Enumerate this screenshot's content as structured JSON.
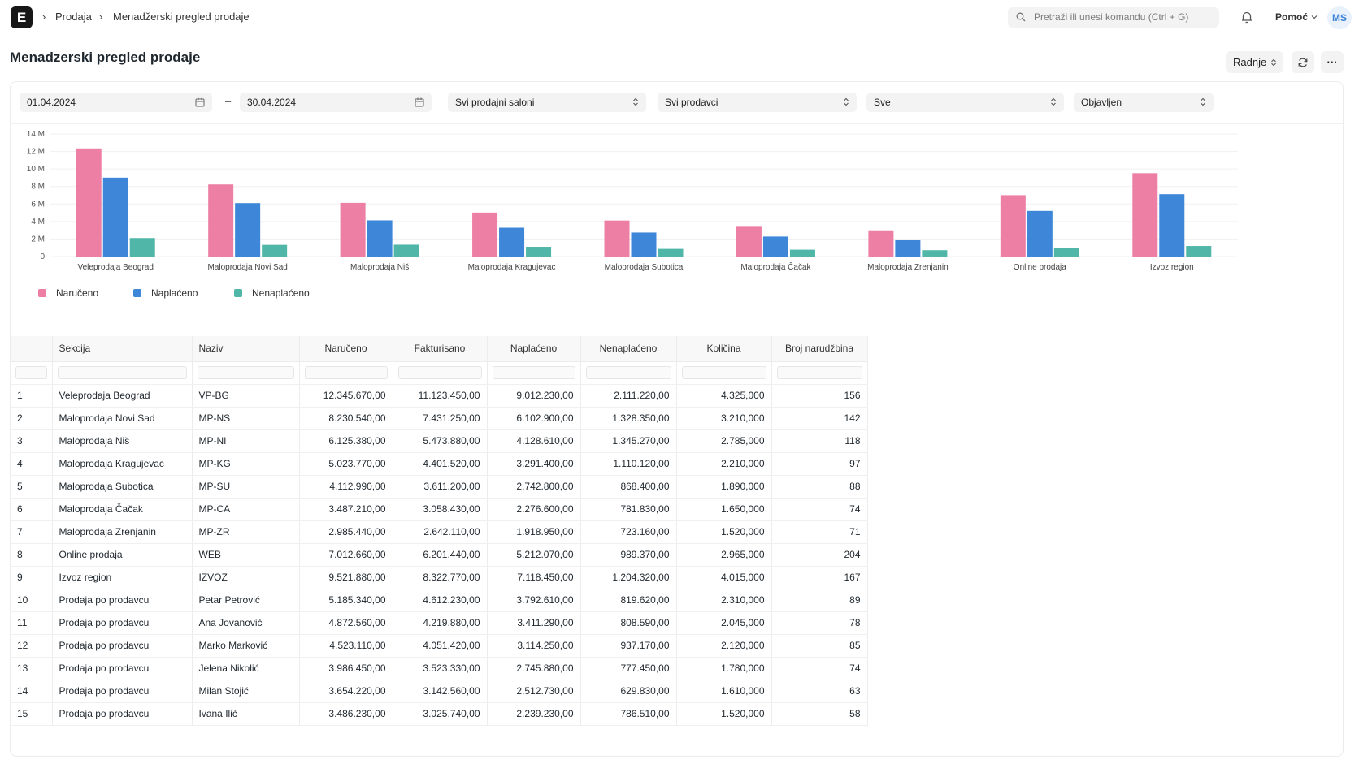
{
  "topbar": {
    "logo": "E",
    "breadcrumbs": [
      "Prodaja",
      "Menadžerski pregled prodaje"
    ],
    "search_placeholder": "Pretraži ili unesi komandu (Ctrl + G)",
    "help_label": "Pomoć",
    "avatar_initials": "MS"
  },
  "page": {
    "title": "Menadzerski pregled prodaje",
    "actions_label": "Radnje",
    "more_label": "···"
  },
  "filters": {
    "date_from": "01.04.2024",
    "date_sep": "–",
    "date_to": "30.04.2024",
    "salon": "Svi prodajni saloni",
    "seller": "Svi prodavci",
    "status": "Sve",
    "state": "Objavljen"
  },
  "colors": {
    "naruceno": "#ec7fa3",
    "naplaceno": "#3d86d8",
    "nenaplaceno": "#4fb6a8"
  },
  "chart_data": {
    "type": "bar",
    "categories": [
      "Veleprodaja Beograd",
      "Maloprodaja Novi Sad",
      "Maloprodaja Niš",
      "Maloprodaja Kragujevac",
      "Maloprodaja Subotica",
      "Maloprodaja Čačak",
      "Maloprodaja Zrenjanin",
      "Online prodaja",
      "Izvoz region"
    ],
    "series": [
      {
        "name": "Naručeno",
        "values": [
          12.35,
          8.23,
          6.13,
          5.02,
          4.11,
          3.49,
          2.99,
          7.01,
          9.52
        ]
      },
      {
        "name": "Naplaćeno",
        "values": [
          9.01,
          6.1,
          4.13,
          3.29,
          2.74,
          2.28,
          1.92,
          5.21,
          7.12
        ]
      },
      {
        "name": "Nenaplaćeno",
        "values": [
          2.11,
          1.33,
          1.35,
          1.11,
          0.87,
          0.78,
          0.72,
          0.99,
          1.2
        ]
      }
    ],
    "yticks": [
      "0",
      "2 M",
      "4 M",
      "6 M",
      "8 M",
      "10 M",
      "12 M",
      "14 M"
    ],
    "ylim": [
      0,
      14
    ],
    "legend": "bottom-left",
    "grid": true
  },
  "table": {
    "headers": [
      "",
      "Sekcija",
      "Naziv",
      "Naručeno",
      "Fakturisano",
      "Naplaćeno",
      "Nenaplaćeno",
      "Količina",
      "Broj narudžbina"
    ],
    "rows": [
      [
        "1",
        "Veleprodaja Beograd",
        "VP-BG",
        "12.345.670,00",
        "11.123.450,00",
        "9.012.230,00",
        "2.111.220,00",
        "4.325,000",
        "156"
      ],
      [
        "2",
        "Maloprodaja Novi Sad",
        "MP-NS",
        "8.230.540,00",
        "7.431.250,00",
        "6.102.900,00",
        "1.328.350,00",
        "3.210,000",
        "142"
      ],
      [
        "3",
        "Maloprodaja Niš",
        "MP-NI",
        "6.125.380,00",
        "5.473.880,00",
        "4.128.610,00",
        "1.345.270,00",
        "2.785,000",
        "118"
      ],
      [
        "4",
        "Maloprodaja Kragujevac",
        "MP-KG",
        "5.023.770,00",
        "4.401.520,00",
        "3.291.400,00",
        "1.110.120,00",
        "2.210,000",
        "97"
      ],
      [
        "5",
        "Maloprodaja Subotica",
        "MP-SU",
        "4.112.990,00",
        "3.611.200,00",
        "2.742.800,00",
        "868.400,00",
        "1.890,000",
        "88"
      ],
      [
        "6",
        "Maloprodaja Čačak",
        "MP-CA",
        "3.487.210,00",
        "3.058.430,00",
        "2.276.600,00",
        "781.830,00",
        "1.650,000",
        "74"
      ],
      [
        "7",
        "Maloprodaja Zrenjanin",
        "MP-ZR",
        "2.985.440,00",
        "2.642.110,00",
        "1.918.950,00",
        "723.160,00",
        "1.520,000",
        "71"
      ],
      [
        "8",
        "Online prodaja",
        "WEB",
        "7.012.660,00",
        "6.201.440,00",
        "5.212.070,00",
        "989.370,00",
        "2.965,000",
        "204"
      ],
      [
        "9",
        "Izvoz region",
        "IZVOZ",
        "9.521.880,00",
        "8.322.770,00",
        "7.118.450,00",
        "1.204.320,00",
        "4.015,000",
        "167"
      ],
      [
        "10",
        "Prodaja po prodavcu",
        "Petar Petrović",
        "5.185.340,00",
        "4.612.230,00",
        "3.792.610,00",
        "819.620,00",
        "2.310,000",
        "89"
      ],
      [
        "11",
        "Prodaja po prodavcu",
        "Ana Jovanović",
        "4.872.560,00",
        "4.219.880,00",
        "3.411.290,00",
        "808.590,00",
        "2.045,000",
        "78"
      ],
      [
        "12",
        "Prodaja po prodavcu",
        "Marko Marković",
        "4.523.110,00",
        "4.051.420,00",
        "3.114.250,00",
        "937.170,00",
        "2.120,000",
        "85"
      ],
      [
        "13",
        "Prodaja po prodavcu",
        "Jelena Nikolić",
        "3.986.450,00",
        "3.523.330,00",
        "2.745.880,00",
        "777.450,00",
        "1.780,000",
        "74"
      ],
      [
        "14",
        "Prodaja po prodavcu",
        "Milan Stojić",
        "3.654.220,00",
        "3.142.560,00",
        "2.512.730,00",
        "629.830,00",
        "1.610,000",
        "63"
      ],
      [
        "15",
        "Prodaja po prodavcu",
        "Ivana Ilić",
        "3.486.230,00",
        "3.025.740,00",
        "2.239.230,00",
        "786.510,00",
        "1.520,000",
        "58"
      ]
    ]
  }
}
